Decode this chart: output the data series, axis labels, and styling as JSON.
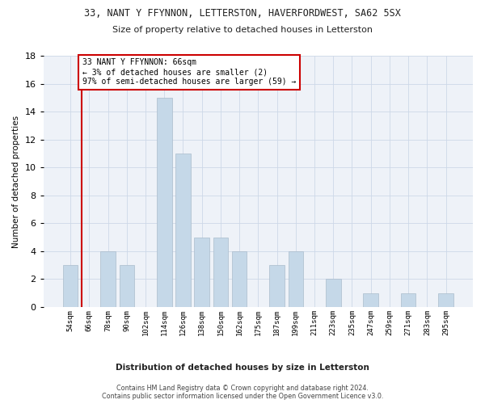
{
  "title": "33, NANT Y FFYNNON, LETTERSTON, HAVERFORDWEST, SA62 5SX",
  "subtitle": "Size of property relative to detached houses in Letterston",
  "xlabel_bottom": "Distribution of detached houses by size in Letterston",
  "ylabel": "Number of detached properties",
  "categories": [
    "54sqm",
    "66sqm",
    "78sqm",
    "90sqm",
    "102sqm",
    "114sqm",
    "126sqm",
    "138sqm",
    "150sqm",
    "162sqm",
    "175sqm",
    "187sqm",
    "199sqm",
    "211sqm",
    "223sqm",
    "235sqm",
    "247sqm",
    "259sqm",
    "271sqm",
    "283sqm",
    "295sqm"
  ],
  "values": [
    3,
    0,
    4,
    3,
    0,
    15,
    11,
    5,
    5,
    4,
    0,
    3,
    4,
    0,
    2,
    0,
    1,
    0,
    1,
    0,
    1
  ],
  "bar_color": "#c5d8e8",
  "bar_edge_color": "#aabccc",
  "highlight_color": "#cc0000",
  "annotation_text": "33 NANT Y FFYNNON: 66sqm\n← 3% of detached houses are smaller (2)\n97% of semi-detached houses are larger (59) →",
  "annotation_box_color": "#cc0000",
  "ylim": [
    0,
    18
  ],
  "yticks": [
    0,
    2,
    4,
    6,
    8,
    10,
    12,
    14,
    16,
    18
  ],
  "grid_color": "#cdd8e8",
  "background_color": "#eef2f8",
  "footer": "Contains HM Land Registry data © Crown copyright and database right 2024.\nContains public sector information licensed under the Open Government Licence v3.0."
}
